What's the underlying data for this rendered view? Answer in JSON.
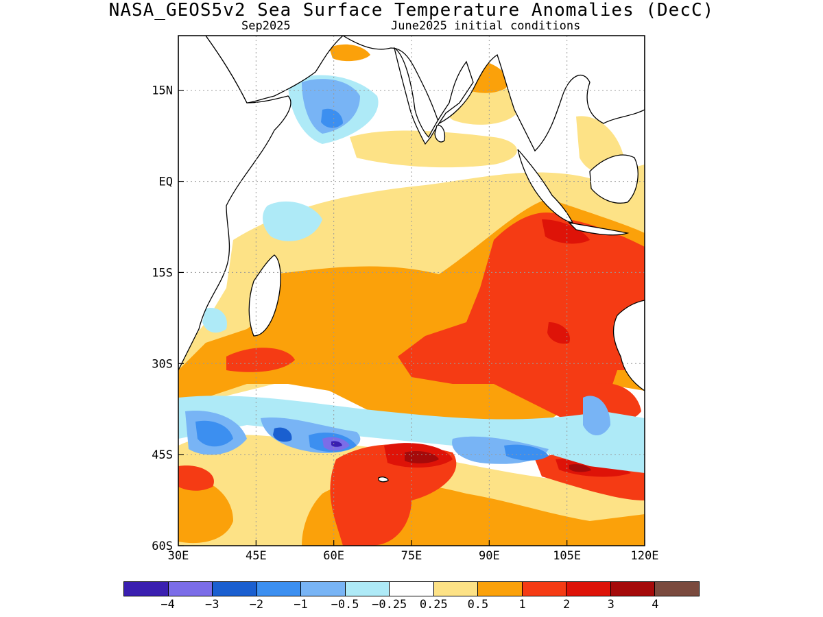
{
  "title": "NASA_GEOS5v2 Sea Surface Temperature Anomalies (DecC)",
  "subtitle_left": "Sep2025",
  "subtitle_right": "June2025 initial conditions",
  "map": {
    "lon_range": [
      30,
      120
    ],
    "lat_range": [
      -60,
      24
    ],
    "lon_ticks": [
      {
        "value": 30,
        "label": "30E"
      },
      {
        "value": 45,
        "label": "45E"
      },
      {
        "value": 60,
        "label": "60E"
      },
      {
        "value": 75,
        "label": "75E"
      },
      {
        "value": 90,
        "label": "90E"
      },
      {
        "value": 105,
        "label": "105E"
      },
      {
        "value": 120,
        "label": "120E"
      }
    ],
    "lat_ticks": [
      {
        "value": 15,
        "label": "15N"
      },
      {
        "value": 0,
        "label": "EQ"
      },
      {
        "value": -15,
        "label": "15S"
      },
      {
        "value": -30,
        "label": "30S"
      },
      {
        "value": -45,
        "label": "45S"
      },
      {
        "value": -60,
        "label": "60S"
      }
    ],
    "grid": true
  },
  "colorbar": {
    "colors": [
      "#3a1fb0",
      "#7b6de8",
      "#1a5fd0",
      "#3c8ff0",
      "#78b4f5",
      "#aeeaf7",
      "#ffffff",
      "#fde286",
      "#fba10a",
      "#f53b14",
      "#de1308",
      "#a50a0a",
      "#7a4a3e"
    ],
    "labels": [
      "−4",
      "−3",
      "−2",
      "−1",
      "−0.5",
      "−0.25",
      "0.25",
      "0.5",
      "1",
      "2",
      "3",
      "4"
    ]
  }
}
